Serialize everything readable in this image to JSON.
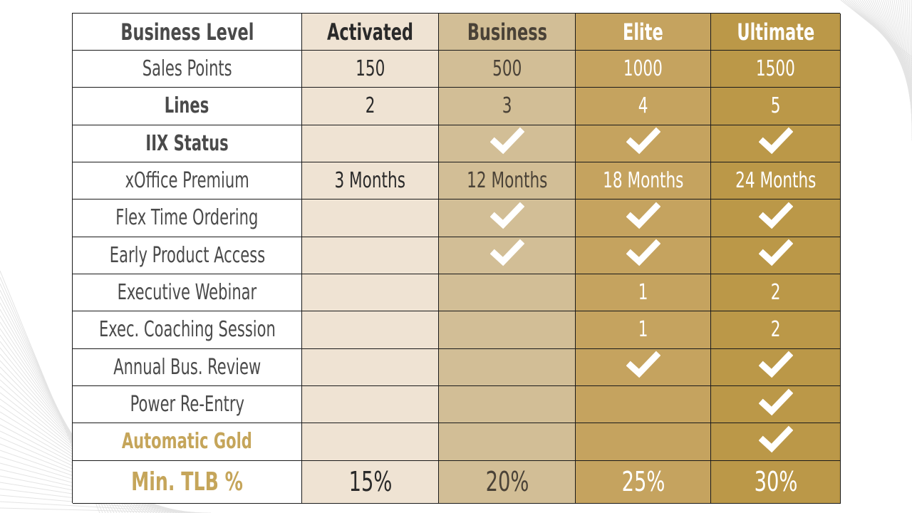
{
  "table": {
    "columns": [
      "Business Level",
      "Activated",
      "Business",
      "Elite",
      "Ultimate"
    ],
    "rows": [
      {
        "label": "Sales Points",
        "style": "normal",
        "values": [
          "150",
          "500",
          "1000",
          "1500"
        ]
      },
      {
        "label": "Lines",
        "style": "bold",
        "values": [
          "2",
          "3",
          "4",
          "5"
        ]
      },
      {
        "label": "IIX Status",
        "style": "bold",
        "values": [
          "",
          "check",
          "check",
          "check"
        ]
      },
      {
        "label": "xOffice Premium",
        "style": "normal",
        "values": [
          "3 Months",
          "12 Months",
          "18 Months",
          "24 Months"
        ]
      },
      {
        "label": "Flex Time Ordering",
        "style": "normal",
        "values": [
          "",
          "check",
          "check",
          "check"
        ]
      },
      {
        "label": "Early Product Access",
        "style": "normal",
        "values": [
          "",
          "check",
          "check",
          "check"
        ]
      },
      {
        "label": "Executive Webinar",
        "style": "normal",
        "values": [
          "",
          "",
          "1",
          "2"
        ]
      },
      {
        "label": "Exec. Coaching Session",
        "style": "normal",
        "values": [
          "",
          "",
          "1",
          "2"
        ]
      },
      {
        "label": "Annual Bus. Review",
        "style": "normal",
        "values": [
          "",
          "",
          "check",
          "check"
        ]
      },
      {
        "label": "Power Re-Entry",
        "style": "normal",
        "values": [
          "",
          "",
          "",
          "check"
        ]
      },
      {
        "label": "Automatic Gold",
        "style": "gold",
        "values": [
          "",
          "",
          "",
          "check"
        ]
      },
      {
        "label": "Min. TLB %",
        "style": "gold-big",
        "values": [
          "15%",
          "20%",
          "25%",
          "30%"
        ]
      }
    ]
  },
  "icons": {
    "check": "checkmark-icon"
  },
  "colors": {
    "activated": "#efe3d3",
    "business": "#d2be96",
    "elite": "#c5a35f",
    "ultimate": "#bb9848",
    "gold_text": "#c5a55a"
  }
}
